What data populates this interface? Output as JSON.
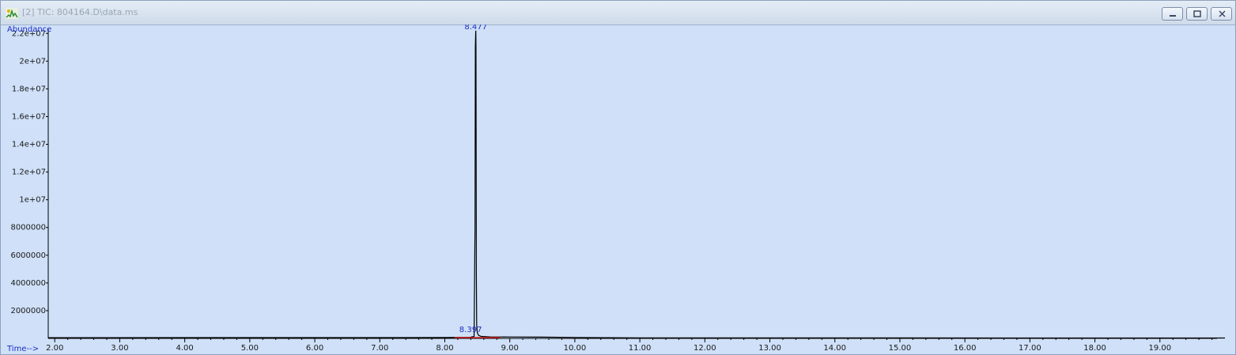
{
  "window": {
    "title": "[2] TIC: 804164.D\\data.ms",
    "icon": "chromatogram-app-icon",
    "buttons": [
      {
        "name": "minimize-button",
        "icon": "minimize-icon"
      },
      {
        "name": "restore-button",
        "icon": "restore-icon"
      },
      {
        "name": "close-button",
        "icon": "close-icon"
      }
    ]
  },
  "chart_data": {
    "type": "line",
    "title": "",
    "xlabel": "Time-->",
    "ylabel": "Abundance",
    "xlim": [
      1.9,
      20.0
    ],
    "ylim": [
      0,
      22300000
    ],
    "x_ticks": [
      2.0,
      3.0,
      4.0,
      5.0,
      6.0,
      7.0,
      8.0,
      9.0,
      10.0,
      11.0,
      12.0,
      13.0,
      14.0,
      15.0,
      16.0,
      17.0,
      18.0,
      19.0
    ],
    "x_tick_labels": [
      "2.00",
      "3.00",
      "4.00",
      "5.00",
      "6.00",
      "7.00",
      "8.00",
      "9.00",
      "10.00",
      "11.00",
      "12.00",
      "13.00",
      "14.00",
      "15.00",
      "16.00",
      "17.00",
      "18.00",
      "19.00"
    ],
    "y_ticks": [
      2000000,
      4000000,
      6000000,
      8000000,
      10000000,
      12000000,
      14000000,
      16000000,
      18000000,
      20000000,
      22000000
    ],
    "y_tick_labels": [
      "2000000",
      "4000000",
      "6000000",
      "8000000",
      "1e+07",
      "1.2e+07",
      "1.4e+07",
      "1.6e+07",
      "1.8e+07",
      "2e+07",
      "2.2e+07"
    ],
    "grid": false,
    "series": [
      {
        "x": [
          1.9,
          8.0,
          8.39,
          8.45,
          8.465,
          8.47,
          8.475,
          8.477,
          8.48,
          8.485,
          8.49,
          8.5,
          8.52,
          8.56,
          8.7,
          9.0,
          9.5,
          10.0,
          10.5,
          11.0,
          20.0
        ],
        "y": [
          50000,
          60000,
          80000,
          150000,
          8000000,
          21000000,
          22000000,
          22200000,
          21000000,
          4500000,
          1000000,
          400000,
          220000,
          140000,
          110000,
          100000,
          90000,
          70000,
          50000,
          40000,
          30000
        ]
      }
    ],
    "peak_labels": [
      {
        "label": "8.477",
        "x": 8.477,
        "y": 22200000
      },
      {
        "label": "8.397",
        "x": 8.397,
        "y": 350000
      }
    ],
    "colors": {
      "background": "#cfe0f8",
      "trace": "#000000",
      "labels": "#1c2dc8",
      "baseline": "#d02020"
    }
  }
}
